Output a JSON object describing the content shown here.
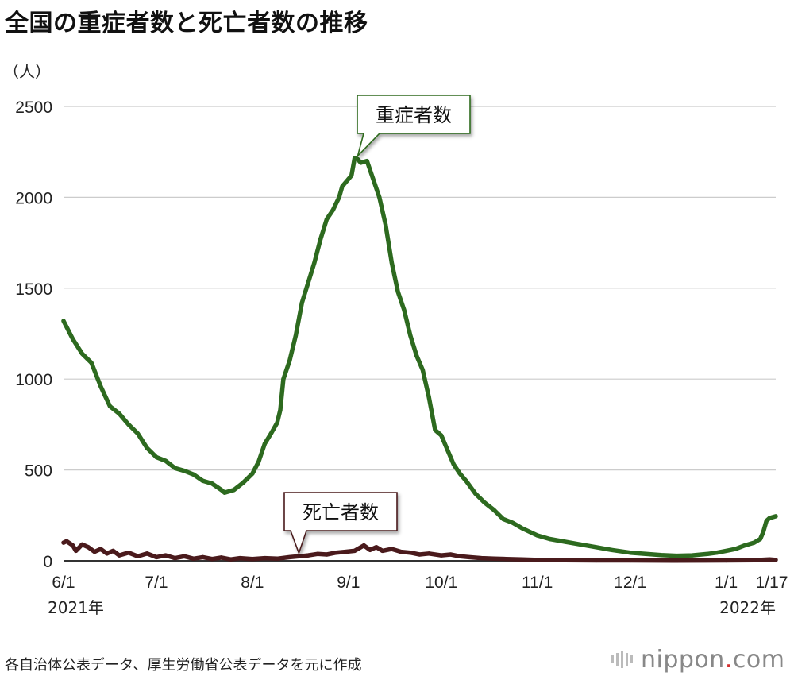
{
  "title": "全国の重症者数と死亡者数の推移",
  "unit_label": "（人）",
  "source": "各自治体公表データ、厚生労働省公表データを元に作成",
  "logo": {
    "name": "nippon",
    "suffix": "com"
  },
  "colors": {
    "severe": "#2d6a1f",
    "deaths": "#4a1a1c",
    "grid": "#cccccc",
    "axis": "#333333"
  },
  "chart_data": {
    "type": "line",
    "title": "全国の重症者数と死亡者数の推移",
    "ylabel": "（人）",
    "xlabel": "",
    "ylim": [
      0,
      2500
    ],
    "yticks": [
      0,
      500,
      1000,
      1500,
      2000,
      2500
    ],
    "grid": true,
    "x_tick_labels": [
      {
        "date": "2021-06-01",
        "label": "6/1"
      },
      {
        "date": "2021-07-01",
        "label": "7/1"
      },
      {
        "date": "2021-08-01",
        "label": "8/1"
      },
      {
        "date": "2021-09-01",
        "label": "9/1"
      },
      {
        "date": "2021-10-01",
        "label": "10/1"
      },
      {
        "date": "2021-11-01",
        "label": "11/1"
      },
      {
        "date": "2021-12-01",
        "label": "12/1"
      },
      {
        "date": "2022-01-01",
        "label": "1/1"
      },
      {
        "date": "2022-01-17",
        "label": "1/17"
      }
    ],
    "year_labels": [
      {
        "date": "2021-06-01",
        "label": "2021年"
      },
      {
        "date": "2022-01-17",
        "label": "2022年"
      }
    ],
    "series": [
      {
        "name": "重症者数",
        "color": "#2d6a1f",
        "points": [
          [
            "2021-06-01",
            1320
          ],
          [
            "2021-06-04",
            1220
          ],
          [
            "2021-06-07",
            1140
          ],
          [
            "2021-06-10",
            1090
          ],
          [
            "2021-06-13",
            960
          ],
          [
            "2021-06-16",
            850
          ],
          [
            "2021-06-19",
            810
          ],
          [
            "2021-06-22",
            750
          ],
          [
            "2021-06-25",
            700
          ],
          [
            "2021-06-28",
            620
          ],
          [
            "2021-07-01",
            570
          ],
          [
            "2021-07-04",
            550
          ],
          [
            "2021-07-07",
            510
          ],
          [
            "2021-07-10",
            495
          ],
          [
            "2021-07-13",
            475
          ],
          [
            "2021-07-16",
            440
          ],
          [
            "2021-07-19",
            425
          ],
          [
            "2021-07-22",
            390
          ],
          [
            "2021-07-23",
            375
          ],
          [
            "2021-07-26",
            390
          ],
          [
            "2021-07-29",
            430
          ],
          [
            "2021-08-01",
            480
          ],
          [
            "2021-08-03",
            545
          ],
          [
            "2021-08-05",
            645
          ],
          [
            "2021-08-07",
            700
          ],
          [
            "2021-08-09",
            760
          ],
          [
            "2021-08-10",
            830
          ],
          [
            "2021-08-11",
            1000
          ],
          [
            "2021-08-13",
            1100
          ],
          [
            "2021-08-15",
            1240
          ],
          [
            "2021-08-17",
            1420
          ],
          [
            "2021-08-19",
            1530
          ],
          [
            "2021-08-21",
            1640
          ],
          [
            "2021-08-23",
            1770
          ],
          [
            "2021-08-25",
            1880
          ],
          [
            "2021-08-27",
            1930
          ],
          [
            "2021-08-29",
            2000
          ],
          [
            "2021-08-30",
            2060
          ],
          [
            "2021-09-01",
            2100
          ],
          [
            "2021-09-02",
            2120
          ],
          [
            "2021-09-03",
            2215
          ],
          [
            "2021-09-04",
            2210
          ],
          [
            "2021-09-05",
            2190
          ],
          [
            "2021-09-07",
            2200
          ],
          [
            "2021-09-09",
            2100
          ],
          [
            "2021-09-11",
            2000
          ],
          [
            "2021-09-13",
            1850
          ],
          [
            "2021-09-15",
            1640
          ],
          [
            "2021-09-17",
            1480
          ],
          [
            "2021-09-19",
            1380
          ],
          [
            "2021-09-21",
            1240
          ],
          [
            "2021-09-23",
            1130
          ],
          [
            "2021-09-25",
            1050
          ],
          [
            "2021-09-27",
            900
          ],
          [
            "2021-09-29",
            720
          ],
          [
            "2021-10-01",
            690
          ],
          [
            "2021-10-03",
            610
          ],
          [
            "2021-10-05",
            530
          ],
          [
            "2021-10-07",
            480
          ],
          [
            "2021-10-09",
            440
          ],
          [
            "2021-10-12",
            370
          ],
          [
            "2021-10-15",
            320
          ],
          [
            "2021-10-18",
            280
          ],
          [
            "2021-10-21",
            230
          ],
          [
            "2021-10-24",
            210
          ],
          [
            "2021-10-27",
            180
          ],
          [
            "2021-11-01",
            140
          ],
          [
            "2021-11-05",
            120
          ],
          [
            "2021-11-10",
            105
          ],
          [
            "2021-11-15",
            90
          ],
          [
            "2021-11-20",
            75
          ],
          [
            "2021-11-25",
            60
          ],
          [
            "2021-12-01",
            45
          ],
          [
            "2021-12-06",
            38
          ],
          [
            "2021-12-11",
            32
          ],
          [
            "2021-12-16",
            28
          ],
          [
            "2021-12-21",
            30
          ],
          [
            "2021-12-26",
            38
          ],
          [
            "2021-12-29",
            45
          ],
          [
            "2022-01-01",
            55
          ],
          [
            "2022-01-04",
            65
          ],
          [
            "2022-01-07",
            85
          ],
          [
            "2022-01-10",
            100
          ],
          [
            "2022-01-12",
            120
          ],
          [
            "2022-01-13",
            160
          ],
          [
            "2022-01-14",
            220
          ],
          [
            "2022-01-15",
            235
          ],
          [
            "2022-01-17",
            245
          ]
        ]
      },
      {
        "name": "死亡者数",
        "color": "#4a1a1c",
        "points": [
          [
            "2021-06-01",
            100
          ],
          [
            "2021-06-02",
            108
          ],
          [
            "2021-06-04",
            85
          ],
          [
            "2021-06-05",
            55
          ],
          [
            "2021-06-07",
            90
          ],
          [
            "2021-06-09",
            75
          ],
          [
            "2021-06-11",
            50
          ],
          [
            "2021-06-13",
            65
          ],
          [
            "2021-06-15",
            40
          ],
          [
            "2021-06-17",
            55
          ],
          [
            "2021-06-19",
            30
          ],
          [
            "2021-06-22",
            45
          ],
          [
            "2021-06-25",
            25
          ],
          [
            "2021-06-28",
            40
          ],
          [
            "2021-07-01",
            20
          ],
          [
            "2021-07-04",
            30
          ],
          [
            "2021-07-07",
            15
          ],
          [
            "2021-07-10",
            25
          ],
          [
            "2021-07-13",
            12
          ],
          [
            "2021-07-16",
            20
          ],
          [
            "2021-07-19",
            10
          ],
          [
            "2021-07-22",
            18
          ],
          [
            "2021-07-25",
            8
          ],
          [
            "2021-07-28",
            15
          ],
          [
            "2021-08-01",
            10
          ],
          [
            "2021-08-05",
            15
          ],
          [
            "2021-08-09",
            12
          ],
          [
            "2021-08-13",
            20
          ],
          [
            "2021-08-16",
            25
          ],
          [
            "2021-08-19",
            30
          ],
          [
            "2021-08-22",
            38
          ],
          [
            "2021-08-25",
            35
          ],
          [
            "2021-08-28",
            45
          ],
          [
            "2021-08-31",
            50
          ],
          [
            "2021-09-03",
            55
          ],
          [
            "2021-09-06",
            85
          ],
          [
            "2021-09-08",
            60
          ],
          [
            "2021-09-10",
            75
          ],
          [
            "2021-09-12",
            55
          ],
          [
            "2021-09-15",
            65
          ],
          [
            "2021-09-18",
            50
          ],
          [
            "2021-09-21",
            45
          ],
          [
            "2021-09-24",
            35
          ],
          [
            "2021-09-27",
            40
          ],
          [
            "2021-10-01",
            30
          ],
          [
            "2021-10-04",
            35
          ],
          [
            "2021-10-07",
            25
          ],
          [
            "2021-10-10",
            20
          ],
          [
            "2021-10-14",
            15
          ],
          [
            "2021-10-18",
            12
          ],
          [
            "2021-10-22",
            10
          ],
          [
            "2021-10-27",
            8
          ],
          [
            "2021-11-01",
            5
          ],
          [
            "2021-11-10",
            3
          ],
          [
            "2021-11-20",
            2
          ],
          [
            "2021-12-01",
            2
          ],
          [
            "2021-12-15",
            1
          ],
          [
            "2022-01-01",
            2
          ],
          [
            "2022-01-10",
            3
          ],
          [
            "2022-01-15",
            8
          ],
          [
            "2022-01-17",
            5
          ]
        ]
      }
    ],
    "annotations": [
      {
        "text": "重症者数",
        "date": "2021-09-04",
        "value": 2210
      },
      {
        "text": "死亡者数",
        "date": "2021-08-16",
        "value": 25
      }
    ]
  }
}
